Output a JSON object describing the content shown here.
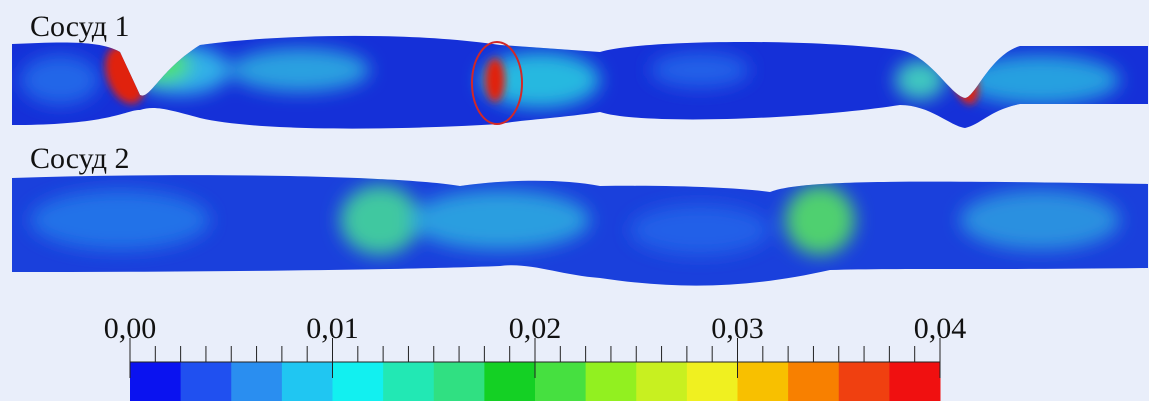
{
  "vessels": [
    {
      "label": "Сосуд 1"
    },
    {
      "label": "Сосуд 2"
    }
  ],
  "colorbar": {
    "lim": [
      0,
      0.04
    ],
    "ticks": [
      {
        "value": 0,
        "label": "0,00"
      },
      {
        "value": 0.01,
        "label": "0,01"
      },
      {
        "value": 0.02,
        "label": "0,02"
      },
      {
        "value": 0.03,
        "label": "0,03"
      },
      {
        "value": 0.04,
        "label": "0,04"
      }
    ],
    "minor_ticks": [
      0.00125,
      0.0025,
      0.00375,
      0.005,
      0.00625,
      0.0075,
      0.00875,
      0.01125,
      0.0125,
      0.01375,
      0.015,
      0.01625,
      0.0175,
      0.01875,
      0.02125,
      0.0225,
      0.02375,
      0.025,
      0.02625,
      0.0275,
      0.02875,
      0.03125,
      0.0325,
      0.03375,
      0.035,
      0.03625,
      0.0375,
      0.03875
    ],
    "colors": [
      "#0a12f0",
      "#2050f0",
      "#2a8ef0",
      "#20c6f2",
      "#12f0f0",
      "#22e8b4",
      "#30e082",
      "#14d024",
      "#46e040",
      "#92f020",
      "#c8f020",
      "#f0f020",
      "#f8c000",
      "#f88000",
      "#f04010",
      "#f01010"
    ]
  }
}
